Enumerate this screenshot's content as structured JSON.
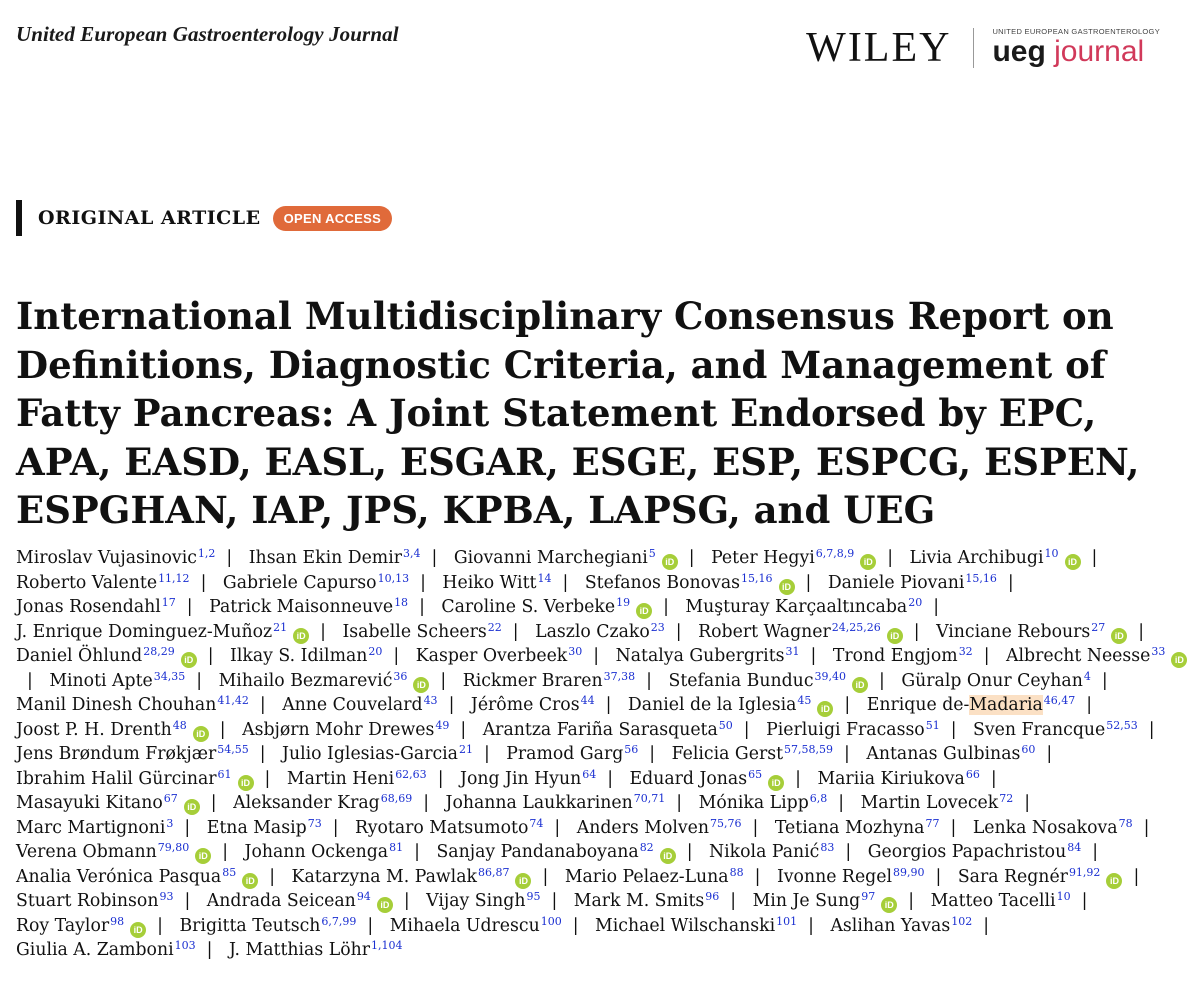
{
  "header": {
    "journal": "United European Gastroenterology Journal",
    "publisher": "WILEY",
    "ueg_small": "UNITED EUROPEAN GASTROENTEROLOGY",
    "ueg_big_1": "ueg",
    "ueg_big_2": " journal"
  },
  "article": {
    "type": "ORIGINAL ARTICLE",
    "access": "OPEN ACCESS",
    "title": "International Multidisciplinary Consensus Report on Definitions, Diagnostic Criteria, and Management of Fatty Pancreas: A Joint Statement Endorsed by EPC, APA, EASD, EASL, ESGAR, ESGE, ESP, ESPCG, ESPEN, ESPGHAN, IAP, JPS, KPBA, LAPSG, and UEG"
  },
  "orcid_label": "iD",
  "authors": [
    {
      "name": "Miroslav Vujasinovic",
      "aff": "1,2",
      "orcid": false
    },
    {
      "name": "Ihsan Ekin Demir",
      "aff": "3,4",
      "orcid": false
    },
    {
      "name": "Giovanni Marchegiani",
      "aff": "5",
      "orcid": true
    },
    {
      "name": "Peter Hegyi",
      "aff": "6,7,8,9",
      "orcid": true
    },
    {
      "name": "Livia Archibugi",
      "aff": "10",
      "orcid": true
    },
    {
      "name": "Roberto Valente",
      "aff": "11,12",
      "orcid": false
    },
    {
      "name": "Gabriele Capurso",
      "aff": "10,13",
      "orcid": false
    },
    {
      "name": "Heiko Witt",
      "aff": "14",
      "orcid": false
    },
    {
      "name": "Stefanos Bonovas",
      "aff": "15,16",
      "orcid": true
    },
    {
      "name": "Daniele Piovani",
      "aff": "15,16",
      "orcid": false
    },
    {
      "name": "Jonas Rosendahl",
      "aff": "17",
      "orcid": false
    },
    {
      "name": "Patrick Maisonneuve",
      "aff": "18",
      "orcid": false
    },
    {
      "name": "Caroline S. Verbeke",
      "aff": "19",
      "orcid": true
    },
    {
      "name": "Muşturay Karçaaltıncaba",
      "aff": "20",
      "orcid": false
    },
    {
      "name": "J. Enrique Dominguez-Muñoz",
      "aff": "21",
      "orcid": true
    },
    {
      "name": "Isabelle Scheers",
      "aff": "22",
      "orcid": false
    },
    {
      "name": "Laszlo Czako",
      "aff": "23",
      "orcid": false
    },
    {
      "name": "Robert Wagner",
      "aff": "24,25,26",
      "orcid": true
    },
    {
      "name": "Vinciane Rebours",
      "aff": "27",
      "orcid": true
    },
    {
      "name": "Daniel Öhlund",
      "aff": "28,29",
      "orcid": true
    },
    {
      "name": "Ilkay S. Idilman",
      "aff": "20",
      "orcid": false
    },
    {
      "name": "Kasper Overbeek",
      "aff": "30",
      "orcid": false
    },
    {
      "name": "Natalya Gubergrits",
      "aff": "31",
      "orcid": false
    },
    {
      "name": "Trond Engjom",
      "aff": "32",
      "orcid": false
    },
    {
      "name": "Albrecht Neesse",
      "aff": "33",
      "orcid": true
    },
    {
      "name": "Minoti Apte",
      "aff": "34,35",
      "orcid": false
    },
    {
      "name": "Mihailo Bezmarević",
      "aff": "36",
      "orcid": true
    },
    {
      "name": "Rickmer Braren",
      "aff": "37,38",
      "orcid": false
    },
    {
      "name": "Stefania Bunduc",
      "aff": "39,40",
      "orcid": true
    },
    {
      "name": "Güralp Onur Ceyhan",
      "aff": "4",
      "orcid": false
    },
    {
      "name": "Manil Dinesh Chouhan",
      "aff": "41,42",
      "orcid": false
    },
    {
      "name": "Anne Couvelard",
      "aff": "43",
      "orcid": false
    },
    {
      "name": "Jérôme Cros",
      "aff": "44",
      "orcid": false
    },
    {
      "name": "Daniel de la Iglesia",
      "aff": "45",
      "orcid": true
    },
    {
      "name": "Enrique de-Madaria",
      "aff": "46,47",
      "orcid": false,
      "hl": true
    },
    {
      "name": "Joost P. H. Drenth",
      "aff": "48",
      "orcid": true
    },
    {
      "name": "Asbjørn Mohr Drewes",
      "aff": "49",
      "orcid": false
    },
    {
      "name": "Arantza Fariña Sarasqueta",
      "aff": "50",
      "orcid": false
    },
    {
      "name": "Pierluigi Fracasso",
      "aff": "51",
      "orcid": false
    },
    {
      "name": "Sven Francque",
      "aff": "52,53",
      "orcid": false
    },
    {
      "name": "Jens Brøndum Frøkjær",
      "aff": "54,55",
      "orcid": false
    },
    {
      "name": "Julio Iglesias-Garcia",
      "aff": "21",
      "orcid": false
    },
    {
      "name": "Pramod Garg",
      "aff": "56",
      "orcid": false
    },
    {
      "name": "Felicia Gerst",
      "aff": "57,58,59",
      "orcid": false
    },
    {
      "name": "Antanas Gulbinas",
      "aff": "60",
      "orcid": false
    },
    {
      "name": "Ibrahim Halil Gürcinar",
      "aff": "61",
      "orcid": true
    },
    {
      "name": "Martin Heni",
      "aff": "62,63",
      "orcid": false
    },
    {
      "name": "Jong Jin Hyun",
      "aff": "64",
      "orcid": false
    },
    {
      "name": "Eduard Jonas",
      "aff": "65",
      "orcid": true
    },
    {
      "name": "Mariia Kiriukova",
      "aff": "66",
      "orcid": false
    },
    {
      "name": "Masayuki Kitano",
      "aff": "67",
      "orcid": true
    },
    {
      "name": "Aleksander Krag",
      "aff": "68,69",
      "orcid": false
    },
    {
      "name": "Johanna Laukkarinen",
      "aff": "70,71",
      "orcid": false
    },
    {
      "name": "Mónika Lipp",
      "aff": "6,8",
      "orcid": false
    },
    {
      "name": "Martin Lovecek",
      "aff": "72",
      "orcid": false
    },
    {
      "name": "Marc Martignoni",
      "aff": "3",
      "orcid": false
    },
    {
      "name": "Etna Masip",
      "aff": "73",
      "orcid": false
    },
    {
      "name": "Ryotaro Matsumoto",
      "aff": "74",
      "orcid": false
    },
    {
      "name": "Anders Molven",
      "aff": "75,76",
      "orcid": false
    },
    {
      "name": "Tetiana Mozhyna",
      "aff": "77",
      "orcid": false
    },
    {
      "name": "Lenka Nosakova",
      "aff": "78",
      "orcid": false
    },
    {
      "name": "Verena Obmann",
      "aff": "79,80",
      "orcid": true
    },
    {
      "name": "Johann Ockenga",
      "aff": "81",
      "orcid": false
    },
    {
      "name": "Sanjay Pandanaboyana",
      "aff": "82",
      "orcid": true
    },
    {
      "name": "Nikola Panić",
      "aff": "83",
      "orcid": false
    },
    {
      "name": "Georgios Papachristou",
      "aff": "84",
      "orcid": false
    },
    {
      "name": "Analia Verónica Pasqua",
      "aff": "85",
      "orcid": true
    },
    {
      "name": "Katarzyna M. Pawlak",
      "aff": "86,87",
      "orcid": true
    },
    {
      "name": "Mario Pelaez-Luna",
      "aff": "88",
      "orcid": false
    },
    {
      "name": "Ivonne Regel",
      "aff": "89,90",
      "orcid": false
    },
    {
      "name": "Sara Regnér",
      "aff": "91,92",
      "orcid": true
    },
    {
      "name": "Stuart Robinson",
      "aff": "93",
      "orcid": false
    },
    {
      "name": "Andrada Seicean",
      "aff": "94",
      "orcid": true
    },
    {
      "name": "Vijay Singh",
      "aff": "95",
      "orcid": false
    },
    {
      "name": "Mark M. Smits",
      "aff": "96",
      "orcid": false
    },
    {
      "name": "Min Je Sung",
      "aff": "97",
      "orcid": true
    },
    {
      "name": "Matteo Tacelli",
      "aff": "10",
      "orcid": false
    },
    {
      "name": "Roy Taylor",
      "aff": "98",
      "orcid": true
    },
    {
      "name": "Brigitta Teutsch",
      "aff": "6,7,99",
      "orcid": false
    },
    {
      "name": "Mihaela Udrescu",
      "aff": "100",
      "orcid": false
    },
    {
      "name": "Michael Wilschanski",
      "aff": "101",
      "orcid": false
    },
    {
      "name": "Aslihan Yavas",
      "aff": "102",
      "orcid": false
    },
    {
      "name": "Giulia A. Zamboni",
      "aff": "103",
      "orcid": false
    },
    {
      "name": "J. Matthias Löhr",
      "aff": "1,104",
      "orcid": false
    }
  ]
}
